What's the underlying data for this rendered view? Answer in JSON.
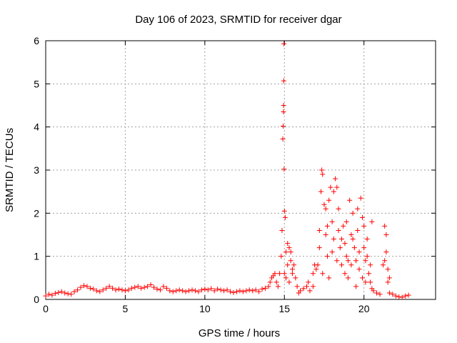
{
  "chart_data": {
    "type": "scatter",
    "title": "Day 106 of 2023, SRMTID for receiver dgar",
    "xlabel": "GPS time / hours",
    "ylabel": "SRMTID / TECUs",
    "xlim": [
      0,
      24.5
    ],
    "ylim": [
      0,
      6
    ],
    "xticks": [
      0,
      5,
      10,
      15,
      20
    ],
    "xtick_labels": [
      "0",
      "5",
      "10",
      "15",
      "20"
    ],
    "yticks": [
      0,
      1,
      2,
      3,
      4,
      5,
      6
    ],
    "ytick_labels": [
      "0",
      "1",
      "2",
      "3",
      "4",
      "5",
      "6"
    ],
    "grid": true,
    "marker": "+",
    "marker_color": "#ff0000",
    "series": [
      {
        "name": "SRMTID",
        "points": [
          [
            0.0,
            0.08
          ],
          [
            0.2,
            0.12
          ],
          [
            0.4,
            0.1
          ],
          [
            0.6,
            0.14
          ],
          [
            0.8,
            0.16
          ],
          [
            1.0,
            0.18
          ],
          [
            1.2,
            0.15
          ],
          [
            1.4,
            0.13
          ],
          [
            1.6,
            0.12
          ],
          [
            1.8,
            0.18
          ],
          [
            2.0,
            0.22
          ],
          [
            2.2,
            0.28
          ],
          [
            2.4,
            0.32
          ],
          [
            2.6,
            0.3
          ],
          [
            2.8,
            0.26
          ],
          [
            3.0,
            0.24
          ],
          [
            3.2,
            0.2
          ],
          [
            3.4,
            0.18
          ],
          [
            3.6,
            0.22
          ],
          [
            3.8,
            0.26
          ],
          [
            4.0,
            0.3
          ],
          [
            4.2,
            0.26
          ],
          [
            4.4,
            0.22
          ],
          [
            4.6,
            0.24
          ],
          [
            4.8,
            0.22
          ],
          [
            5.0,
            0.2
          ],
          [
            5.2,
            0.22
          ],
          [
            5.4,
            0.26
          ],
          [
            5.6,
            0.28
          ],
          [
            5.8,
            0.3
          ],
          [
            6.0,
            0.26
          ],
          [
            6.2,
            0.28
          ],
          [
            6.4,
            0.3
          ],
          [
            6.6,
            0.34
          ],
          [
            6.8,
            0.28
          ],
          [
            7.0,
            0.24
          ],
          [
            7.2,
            0.22
          ],
          [
            7.4,
            0.3
          ],
          [
            7.6,
            0.26
          ],
          [
            7.8,
            0.2
          ],
          [
            8.0,
            0.18
          ],
          [
            8.2,
            0.2
          ],
          [
            8.4,
            0.22
          ],
          [
            8.6,
            0.2
          ],
          [
            8.8,
            0.18
          ],
          [
            9.0,
            0.2
          ],
          [
            9.2,
            0.22
          ],
          [
            9.4,
            0.2
          ],
          [
            9.6,
            0.18
          ],
          [
            9.8,
            0.22
          ],
          [
            10.0,
            0.24
          ],
          [
            10.2,
            0.22
          ],
          [
            10.4,
            0.25
          ],
          [
            10.6,
            0.2
          ],
          [
            10.8,
            0.24
          ],
          [
            11.0,
            0.22
          ],
          [
            11.2,
            0.2
          ],
          [
            11.4,
            0.22
          ],
          [
            11.6,
            0.18
          ],
          [
            11.8,
            0.16
          ],
          [
            12.0,
            0.18
          ],
          [
            12.2,
            0.2
          ],
          [
            12.4,
            0.18
          ],
          [
            12.6,
            0.2
          ],
          [
            12.8,
            0.22
          ],
          [
            13.0,
            0.2
          ],
          [
            13.2,
            0.22
          ],
          [
            13.4,
            0.18
          ],
          [
            13.6,
            0.24
          ],
          [
            13.8,
            0.26
          ],
          [
            14.0,
            0.3
          ],
          [
            14.1,
            0.4
          ],
          [
            14.2,
            0.5
          ],
          [
            14.3,
            0.55
          ],
          [
            14.4,
            0.6
          ],
          [
            14.5,
            0.4
          ],
          [
            14.6,
            0.3
          ],
          [
            14.7,
            0.6
          ],
          [
            14.8,
            1.0
          ],
          [
            14.85,
            1.6
          ],
          [
            14.9,
            3.72
          ],
          [
            14.92,
            4.02
          ],
          [
            14.94,
            4.35
          ],
          [
            14.95,
            4.5
          ],
          [
            14.96,
            5.07
          ],
          [
            14.97,
            5.93
          ],
          [
            14.98,
            3.02
          ],
          [
            15.0,
            2.05
          ],
          [
            15.05,
            1.9
          ],
          [
            15.1,
            1.1
          ],
          [
            15.2,
            0.8
          ],
          [
            15.3,
            1.2
          ],
          [
            15.4,
            0.9
          ],
          [
            15.5,
            0.6
          ],
          [
            15.6,
            0.8
          ],
          [
            15.7,
            0.5
          ],
          [
            15.8,
            0.3
          ],
          [
            15.9,
            0.15
          ],
          [
            16.0,
            0.2
          ],
          [
            16.2,
            0.25
          ],
          [
            16.4,
            0.3
          ],
          [
            16.6,
            0.2
          ],
          [
            16.8,
            0.6
          ],
          [
            16.9,
            0.8
          ],
          [
            17.0,
            0.7
          ],
          [
            17.2,
            1.2
          ],
          [
            17.3,
            2.5
          ],
          [
            17.35,
            3.0
          ],
          [
            17.4,
            2.9
          ],
          [
            17.5,
            2.2
          ],
          [
            17.6,
            1.5
          ],
          [
            17.7,
            1.0
          ],
          [
            17.8,
            2.3
          ],
          [
            17.9,
            2.6
          ],
          [
            18.0,
            1.8
          ],
          [
            18.1,
            1.4
          ],
          [
            18.2,
            2.8
          ],
          [
            18.3,
            2.6
          ],
          [
            18.4,
            1.6
          ],
          [
            18.5,
            1.2
          ],
          [
            18.6,
            0.8
          ],
          [
            18.7,
            1.7
          ],
          [
            18.8,
            1.3
          ],
          [
            18.9,
            1.0
          ],
          [
            19.0,
            0.9
          ],
          [
            19.1,
            2.3
          ],
          [
            19.2,
            1.5
          ],
          [
            19.3,
            2.0
          ],
          [
            19.4,
            1.2
          ],
          [
            19.5,
            0.9
          ],
          [
            19.6,
            1.6
          ],
          [
            19.7,
            1.1
          ],
          [
            19.8,
            2.35
          ],
          [
            19.9,
            1.9
          ],
          [
            20.0,
            1.2
          ],
          [
            20.1,
            0.9
          ],
          [
            20.2,
            1.4
          ],
          [
            20.3,
            0.6
          ],
          [
            20.4,
            0.4
          ],
          [
            20.5,
            0.25
          ],
          [
            20.6,
            0.2
          ],
          [
            20.8,
            0.15
          ],
          [
            21.0,
            0.12
          ],
          [
            21.2,
            0.8
          ],
          [
            21.3,
            1.7
          ],
          [
            21.4,
            1.1
          ],
          [
            21.5,
            0.4
          ],
          [
            21.6,
            0.15
          ],
          [
            21.8,
            0.12
          ],
          [
            22.0,
            0.08
          ],
          [
            22.2,
            0.06
          ],
          [
            22.4,
            0.05
          ],
          [
            22.6,
            0.08
          ],
          [
            22.8,
            0.1
          ]
        ],
        "spikes": [
          [
            15.0,
            0.6
          ],
          [
            15.1,
            0.5
          ],
          [
            15.2,
            1.3
          ],
          [
            15.3,
            0.4
          ],
          [
            15.4,
            1.1
          ],
          [
            15.5,
            0.7
          ],
          [
            16.5,
            0.4
          ],
          [
            16.8,
            0.3
          ],
          [
            17.1,
            0.8
          ],
          [
            17.2,
            1.6
          ],
          [
            17.4,
            0.6
          ],
          [
            17.6,
            2.1
          ],
          [
            17.7,
            1.7
          ],
          [
            17.8,
            0.5
          ],
          [
            18.0,
            1.1
          ],
          [
            18.1,
            2.5
          ],
          [
            18.3,
            0.9
          ],
          [
            18.4,
            2.1
          ],
          [
            18.6,
            1.4
          ],
          [
            18.8,
            0.6
          ],
          [
            18.9,
            1.8
          ],
          [
            19.0,
            0.5
          ],
          [
            19.2,
            0.8
          ],
          [
            19.3,
            1.4
          ],
          [
            19.5,
            0.3
          ],
          [
            19.6,
            2.1
          ],
          [
            19.7,
            0.7
          ],
          [
            19.9,
            0.5
          ],
          [
            20.0,
            1.7
          ],
          [
            20.1,
            0.4
          ],
          [
            20.2,
            1.0
          ],
          [
            20.4,
            0.8
          ],
          [
            20.5,
            1.8
          ],
          [
            21.3,
            0.9
          ],
          [
            21.4,
            1.5
          ],
          [
            21.5,
            0.7
          ],
          [
            21.6,
            0.5
          ]
        ]
      }
    ]
  }
}
